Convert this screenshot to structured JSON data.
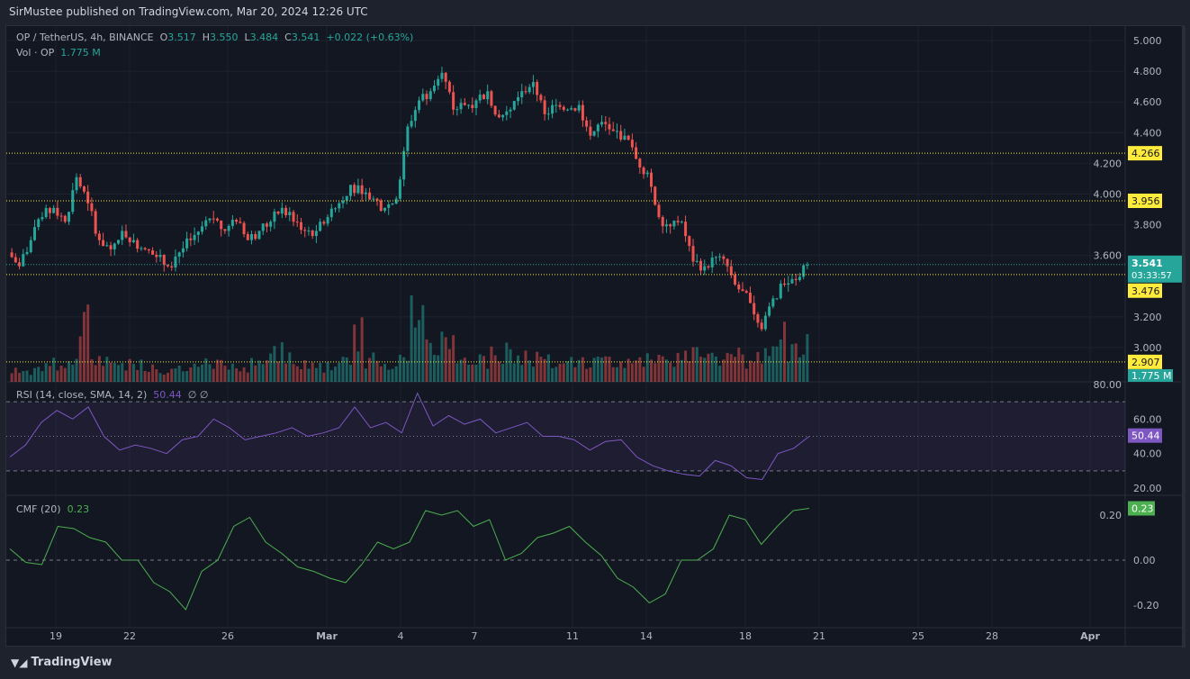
{
  "publisher": "SirMustee published on TradingView.com, Mar 20, 2024 12:26 UTC",
  "legend": {
    "symbol": "OP / TetherUS, 4h, BINANCE",
    "o_label": "O",
    "o": "3.517",
    "h_label": "H",
    "h": "3.550",
    "l_label": "L",
    "l": "3.484",
    "c_label": "C",
    "c": "3.541",
    "change": "+0.022 (+0.63%)",
    "vol_label": "Vol · OP",
    "vol": "1.775 M",
    "rsi_label": "RSI (14, close, SMA, 14, 2)",
    "rsi_value": "50.44",
    "rsi_extra": "∅ ∅",
    "cmf_label": "CMF (20)",
    "cmf_value": "0.23"
  },
  "footer": {
    "brand": "TradingView"
  },
  "colors": {
    "up": "#26a69a",
    "down": "#ef5350",
    "level": "#ffeb3b",
    "rsi": "#7e57c2",
    "cmf": "#4caf50"
  },
  "chart_data": {
    "type": "candlestick",
    "price_ticks": [
      "5.000",
      "4.800",
      "4.600",
      "4.400",
      "4.200",
      "4.000",
      "3.800",
      "3.600",
      "3.200",
      "3.000"
    ],
    "ylim": [
      2.85,
      5.05
    ],
    "levels": [
      {
        "value": 4.266,
        "label": "4.266"
      },
      {
        "value": 3.956,
        "label": "3.956"
      },
      {
        "value": 3.476,
        "label": "3.476"
      },
      {
        "value": 2.907,
        "label": "2.907"
      }
    ],
    "last_price": {
      "value": 3.541,
      "label": "3.541",
      "countdown": "03:33:57"
    },
    "volume_label": "1.775 M",
    "x_ticks": [
      "19",
      "22",
      "26",
      "Mar",
      "4",
      "7",
      "11",
      "14",
      "18",
      "21",
      "25",
      "28",
      "Apr"
    ],
    "closes": [
      3.62,
      3.53,
      3.7,
      3.85,
      3.91,
      3.82,
      4.11,
      3.94,
      3.7,
      3.64,
      3.76,
      3.7,
      3.64,
      3.59,
      3.53,
      3.62,
      3.7,
      3.79,
      3.84,
      3.76,
      3.82,
      3.7,
      3.76,
      3.82,
      3.91,
      3.82,
      3.76,
      3.76,
      3.85,
      3.94,
      4.06,
      4.0,
      3.97,
      3.91,
      3.97,
      4.44,
      4.61,
      4.67,
      4.79,
      4.55,
      4.58,
      4.61,
      4.67,
      4.5,
      4.55,
      4.67,
      4.73,
      4.52,
      4.58,
      4.55,
      4.58,
      4.38,
      4.47,
      4.41,
      4.38,
      4.23,
      4.14,
      3.85,
      3.79,
      3.82,
      3.56,
      3.53,
      3.59,
      3.53,
      3.38,
      3.29,
      3.12,
      3.32,
      3.41,
      3.44,
      3.54
    ],
    "volumes_m": [
      3,
      3,
      4,
      5,
      4,
      5,
      16,
      6,
      5,
      4,
      5,
      5,
      4,
      3,
      4,
      3,
      4,
      5,
      6,
      4,
      4,
      5,
      6,
      8,
      7,
      5,
      4,
      4,
      5,
      7,
      14,
      6,
      5,
      5,
      6,
      22,
      18,
      12,
      10,
      7,
      6,
      6,
      7,
      8,
      6,
      7,
      6,
      6,
      7,
      6,
      5,
      6,
      6,
      5,
      5,
      6,
      7,
      8,
      6,
      7,
      8,
      7,
      6,
      7,
      6,
      8,
      9,
      12,
      8,
      10,
      3
    ],
    "rsi": {
      "ticks": [
        "80.00",
        "60.00",
        "40.00",
        "20.00"
      ],
      "ylim": [
        20,
        80
      ],
      "bands": [
        70,
        50,
        30
      ],
      "value_label": "50.44",
      "values": [
        38,
        45,
        58,
        65,
        60,
        67,
        50,
        42,
        45,
        43,
        40,
        48,
        50,
        60,
        55,
        48,
        50,
        52,
        55,
        50,
        52,
        55,
        67,
        55,
        58,
        52,
        75,
        56,
        62,
        57,
        60,
        52,
        55,
        58,
        50,
        50,
        48,
        42,
        47,
        48,
        38,
        33,
        30,
        28,
        27,
        36,
        33,
        26,
        25,
        40,
        43,
        50
      ]
    },
    "cmf": {
      "ticks": [
        "0.20",
        "0.00",
        "-0.20"
      ],
      "value_label": "0.23",
      "values": [
        0.05,
        -0.01,
        -0.02,
        0.15,
        0.14,
        0.1,
        0.08,
        0.0,
        0.0,
        -0.1,
        -0.14,
        -0.22,
        -0.05,
        0.0,
        0.15,
        0.19,
        0.08,
        0.03,
        -0.03,
        -0.05,
        -0.08,
        -0.1,
        -0.02,
        0.08,
        0.05,
        0.08,
        0.22,
        0.2,
        0.22,
        0.15,
        0.18,
        0.0,
        0.03,
        0.1,
        0.12,
        0.15,
        0.08,
        0.02,
        -0.08,
        -0.12,
        -0.19,
        -0.15,
        0.0,
        0.0,
        0.05,
        0.2,
        0.18,
        0.07,
        0.15,
        0.22,
        0.23
      ]
    }
  }
}
